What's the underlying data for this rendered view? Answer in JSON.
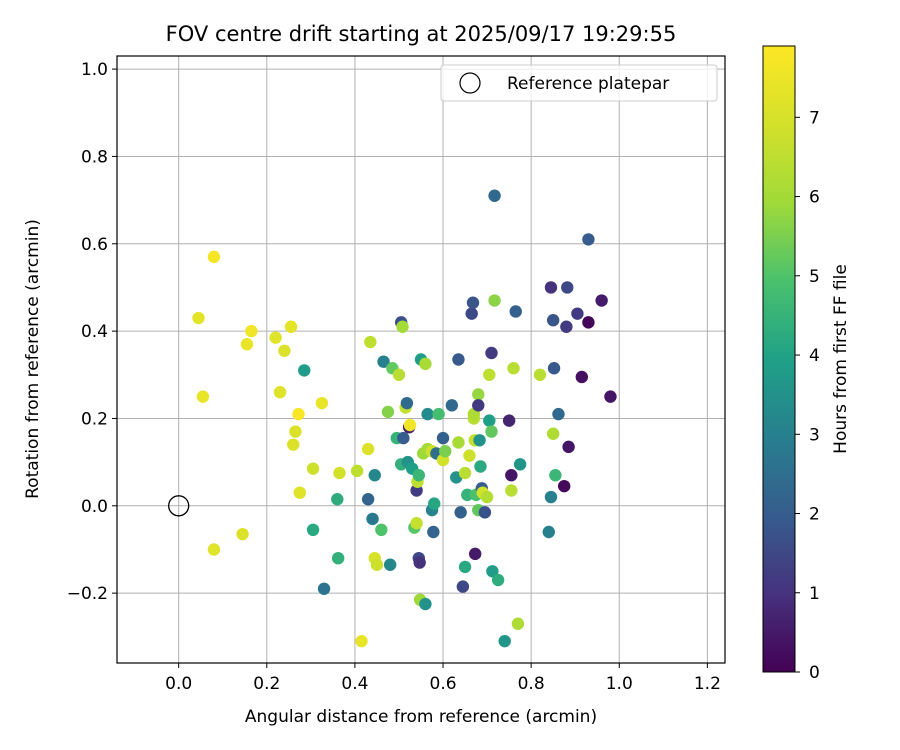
{
  "chart_data": {
    "type": "scatter",
    "title": "FOV centre drift starting at 2025/09/17 19:29:55",
    "xlabel": "Angular distance from reference (arcmin)",
    "ylabel": "Rotation from reference (arcmin)",
    "xlim": [
      -0.14,
      1.24
    ],
    "ylim": [
      -0.36,
      1.03
    ],
    "xticks": [
      0.0,
      0.2,
      0.4,
      0.6,
      0.8,
      1.0,
      1.2
    ],
    "xtick_labels": [
      "0.0",
      "0.2",
      "0.4",
      "0.6",
      "0.8",
      "1.0",
      "1.2"
    ],
    "yticks": [
      -0.2,
      0.0,
      0.2,
      0.4,
      0.6,
      0.8,
      1.0
    ],
    "ytick_labels": [
      "−0.2",
      "0.0",
      "0.2",
      "0.4",
      "0.6",
      "0.8",
      "1.0"
    ],
    "grid": true,
    "legend": {
      "placement": "top-right",
      "entries": [
        "Reference platepar"
      ]
    },
    "reference_point": {
      "x": 0.0,
      "y": 0.0,
      "label": "Reference platepar"
    },
    "colorbar": {
      "label": "Hours from first FF file",
      "colormap": "viridis",
      "range": [
        0,
        7.9
      ],
      "ticks": [
        0,
        1,
        2,
        3,
        4,
        5,
        6,
        7
      ],
      "tick_labels": [
        "0",
        "1",
        "2",
        "3",
        "4",
        "5",
        "6",
        "7"
      ]
    },
    "points": [
      {
        "x": 0.08,
        "y": 0.57,
        "c": 7.7
      },
      {
        "x": 0.045,
        "y": 0.43,
        "c": 7.3
      },
      {
        "x": 0.055,
        "y": 0.25,
        "c": 7.4
      },
      {
        "x": 0.08,
        "y": -0.1,
        "c": 7.2
      },
      {
        "x": 0.145,
        "y": -0.065,
        "c": 7.1
      },
      {
        "x": 0.155,
        "y": 0.37,
        "c": 7.4
      },
      {
        "x": 0.165,
        "y": 0.4,
        "c": 7.6
      },
      {
        "x": 0.22,
        "y": 0.385,
        "c": 7.2
      },
      {
        "x": 0.23,
        "y": 0.26,
        "c": 7.2
      },
      {
        "x": 0.24,
        "y": 0.355,
        "c": 7.1
      },
      {
        "x": 0.255,
        "y": 0.41,
        "c": 7.3
      },
      {
        "x": 0.26,
        "y": 0.14,
        "c": 7.1
      },
      {
        "x": 0.265,
        "y": 0.17,
        "c": 7.1
      },
      {
        "x": 0.272,
        "y": 0.21,
        "c": 7.8
      },
      {
        "x": 0.275,
        "y": 0.03,
        "c": 7.2
      },
      {
        "x": 0.285,
        "y": 0.31,
        "c": 3.8
      },
      {
        "x": 0.305,
        "y": 0.085,
        "c": 6.8
      },
      {
        "x": 0.305,
        "y": -0.055,
        "c": 4.2
      },
      {
        "x": 0.325,
        "y": 0.235,
        "c": 7.4
      },
      {
        "x": 0.33,
        "y": -0.19,
        "c": 2.6
      },
      {
        "x": 0.36,
        "y": 0.015,
        "c": 4.3
      },
      {
        "x": 0.362,
        "y": -0.12,
        "c": 4.4
      },
      {
        "x": 0.365,
        "y": 0.075,
        "c": 6.9
      },
      {
        "x": 0.405,
        "y": 0.08,
        "c": 6.5
      },
      {
        "x": 0.415,
        "y": -0.31,
        "c": 7.4
      },
      {
        "x": 0.43,
        "y": 0.015,
        "c": 2.2
      },
      {
        "x": 0.43,
        "y": 0.13,
        "c": 7.1
      },
      {
        "x": 0.435,
        "y": 0.375,
        "c": 6.5
      },
      {
        "x": 0.44,
        "y": -0.03,
        "c": 2.8
      },
      {
        "x": 0.445,
        "y": 0.07,
        "c": 3.2
      },
      {
        "x": 0.445,
        "y": -0.12,
        "c": 7.0
      },
      {
        "x": 0.45,
        "y": -0.135,
        "c": 6.8
      },
      {
        "x": 0.46,
        "y": -0.055,
        "c": 5.0
      },
      {
        "x": 0.465,
        "y": 0.33,
        "c": 3.0
      },
      {
        "x": 0.475,
        "y": 0.215,
        "c": 5.6
      },
      {
        "x": 0.48,
        "y": -0.135,
        "c": 3.2
      },
      {
        "x": 0.485,
        "y": 0.315,
        "c": 5.2
      },
      {
        "x": 0.495,
        "y": 0.155,
        "c": 4.5
      },
      {
        "x": 0.5,
        "y": 0.3,
        "c": 6.4
      },
      {
        "x": 0.505,
        "y": 0.42,
        "c": 1.7
      },
      {
        "x": 0.505,
        "y": 0.095,
        "c": 4.4
      },
      {
        "x": 0.508,
        "y": 0.41,
        "c": 6.0
      },
      {
        "x": 0.51,
        "y": 0.155,
        "c": 2.0
      },
      {
        "x": 0.515,
        "y": 0.225,
        "c": 6.6
      },
      {
        "x": 0.518,
        "y": 0.235,
        "c": 2.4
      },
      {
        "x": 0.52,
        "y": 0.1,
        "c": 3.5
      },
      {
        "x": 0.523,
        "y": 0.18,
        "c": 0.6
      },
      {
        "x": 0.525,
        "y": 0.185,
        "c": 7.6
      },
      {
        "x": 0.53,
        "y": 0.085,
        "c": 3.9
      },
      {
        "x": 0.535,
        "y": -0.05,
        "c": 5.1
      },
      {
        "x": 0.54,
        "y": -0.04,
        "c": 6.6
      },
      {
        "x": 0.54,
        "y": 0.035,
        "c": 1.2
      },
      {
        "x": 0.542,
        "y": 0.055,
        "c": 6.5
      },
      {
        "x": 0.545,
        "y": -0.12,
        "c": 1.5
      },
      {
        "x": 0.547,
        "y": -0.13,
        "c": 1.0
      },
      {
        "x": 0.545,
        "y": 0.07,
        "c": 4.6
      },
      {
        "x": 0.548,
        "y": -0.215,
        "c": 5.9
      },
      {
        "x": 0.55,
        "y": 0.335,
        "c": 3.8
      },
      {
        "x": 0.555,
        "y": 0.12,
        "c": 5.9
      },
      {
        "x": 0.56,
        "y": -0.225,
        "c": 3.5
      },
      {
        "x": 0.56,
        "y": 0.325,
        "c": 6.1
      },
      {
        "x": 0.565,
        "y": 0.13,
        "c": 6.0
      },
      {
        "x": 0.565,
        "y": 0.21,
        "c": 3.3
      },
      {
        "x": 0.575,
        "y": -0.01,
        "c": 3.1
      },
      {
        "x": 0.575,
        "y": 0.125,
        "c": 6.8
      },
      {
        "x": 0.578,
        "y": -0.06,
        "c": 2.2
      },
      {
        "x": 0.58,
        "y": 0.005,
        "c": 4.1
      },
      {
        "x": 0.585,
        "y": 0.12,
        "c": 2.5
      },
      {
        "x": 0.59,
        "y": 0.21,
        "c": 4.8
      },
      {
        "x": 0.6,
        "y": 0.155,
        "c": 2.1
      },
      {
        "x": 0.6,
        "y": 0.105,
        "c": 6.9
      },
      {
        "x": 0.605,
        "y": 0.125,
        "c": 5.5
      },
      {
        "x": 0.62,
        "y": 0.23,
        "c": 2.4
      },
      {
        "x": 0.63,
        "y": 0.065,
        "c": 3.5
      },
      {
        "x": 0.635,
        "y": 0.145,
        "c": 6.1
      },
      {
        "x": 0.635,
        "y": 0.335,
        "c": 1.9
      },
      {
        "x": 0.64,
        "y": -0.015,
        "c": 2.1
      },
      {
        "x": 0.645,
        "y": -0.185,
        "c": 1.5
      },
      {
        "x": 0.65,
        "y": 0.075,
        "c": 6.4
      },
      {
        "x": 0.65,
        "y": -0.14,
        "c": 4.2
      },
      {
        "x": 0.655,
        "y": 0.025,
        "c": 4.5
      },
      {
        "x": 0.66,
        "y": 0.115,
        "c": 6.8
      },
      {
        "x": 0.665,
        "y": 0.44,
        "c": 1.5
      },
      {
        "x": 0.668,
        "y": 0.465,
        "c": 1.8
      },
      {
        "x": 0.67,
        "y": 0.2,
        "c": 6.4
      },
      {
        "x": 0.67,
        "y": 0.21,
        "c": 6.2
      },
      {
        "x": 0.672,
        "y": 0.15,
        "c": 6.6
      },
      {
        "x": 0.673,
        "y": -0.11,
        "c": 0.5
      },
      {
        "x": 0.675,
        "y": 0.025,
        "c": 4.9
      },
      {
        "x": 0.68,
        "y": 0.255,
        "c": 5.8
      },
      {
        "x": 0.68,
        "y": 0.23,
        "c": 1.2
      },
      {
        "x": 0.68,
        "y": -0.01,
        "c": 5.2
      },
      {
        "x": 0.683,
        "y": 0.15,
        "c": 3.5
      },
      {
        "x": 0.685,
        "y": 0.09,
        "c": 4.2
      },
      {
        "x": 0.688,
        "y": 0.04,
        "c": 2.0
      },
      {
        "x": 0.69,
        "y": 0.03,
        "c": 6.9
      },
      {
        "x": 0.695,
        "y": -0.015,
        "c": 1.7
      },
      {
        "x": 0.7,
        "y": 0.02,
        "c": 6.3
      },
      {
        "x": 0.705,
        "y": 0.3,
        "c": 6.5
      },
      {
        "x": 0.705,
        "y": 0.195,
        "c": 3.9
      },
      {
        "x": 0.71,
        "y": 0.35,
        "c": 1.2
      },
      {
        "x": 0.71,
        "y": 0.17,
        "c": 5.2
      },
      {
        "x": 0.712,
        "y": -0.15,
        "c": 3.8
      },
      {
        "x": 0.717,
        "y": 0.71,
        "c": 2.3
      },
      {
        "x": 0.717,
        "y": 0.47,
        "c": 5.7
      },
      {
        "x": 0.725,
        "y": -0.17,
        "c": 4.3
      },
      {
        "x": 0.74,
        "y": -0.31,
        "c": 3.6
      },
      {
        "x": 0.75,
        "y": 0.195,
        "c": 0.7
      },
      {
        "x": 0.755,
        "y": 0.07,
        "c": 0.4
      },
      {
        "x": 0.755,
        "y": 0.035,
        "c": 6.4
      },
      {
        "x": 0.76,
        "y": 0.315,
        "c": 6.4
      },
      {
        "x": 0.765,
        "y": 0.445,
        "c": 2.1
      },
      {
        "x": 0.77,
        "y": -0.27,
        "c": 6.2
      },
      {
        "x": 0.775,
        "y": 0.095,
        "c": 3.6
      },
      {
        "x": 0.82,
        "y": 0.3,
        "c": 6.4
      },
      {
        "x": 0.84,
        "y": -0.06,
        "c": 3.0
      },
      {
        "x": 0.845,
        "y": 0.5,
        "c": 1.0
      },
      {
        "x": 0.845,
        "y": 0.02,
        "c": 3.0
      },
      {
        "x": 0.85,
        "y": 0.425,
        "c": 1.8
      },
      {
        "x": 0.85,
        "y": 0.165,
        "c": 6.2
      },
      {
        "x": 0.852,
        "y": 0.315,
        "c": 1.9
      },
      {
        "x": 0.855,
        "y": 0.07,
        "c": 4.6
      },
      {
        "x": 0.862,
        "y": 0.21,
        "c": 2.3
      },
      {
        "x": 0.875,
        "y": 0.045,
        "c": 0.2
      },
      {
        "x": 0.88,
        "y": 0.41,
        "c": 1.2
      },
      {
        "x": 0.882,
        "y": 0.5,
        "c": 1.5
      },
      {
        "x": 0.885,
        "y": 0.135,
        "c": 0.4
      },
      {
        "x": 0.905,
        "y": 0.44,
        "c": 1.2
      },
      {
        "x": 0.915,
        "y": 0.295,
        "c": 0.3
      },
      {
        "x": 0.93,
        "y": 0.61,
        "c": 2.0
      },
      {
        "x": 0.93,
        "y": 0.42,
        "c": 0.1
      },
      {
        "x": 0.96,
        "y": 0.47,
        "c": 0.5
      },
      {
        "x": 0.98,
        "y": 0.25,
        "c": 0.4
      }
    ]
  }
}
